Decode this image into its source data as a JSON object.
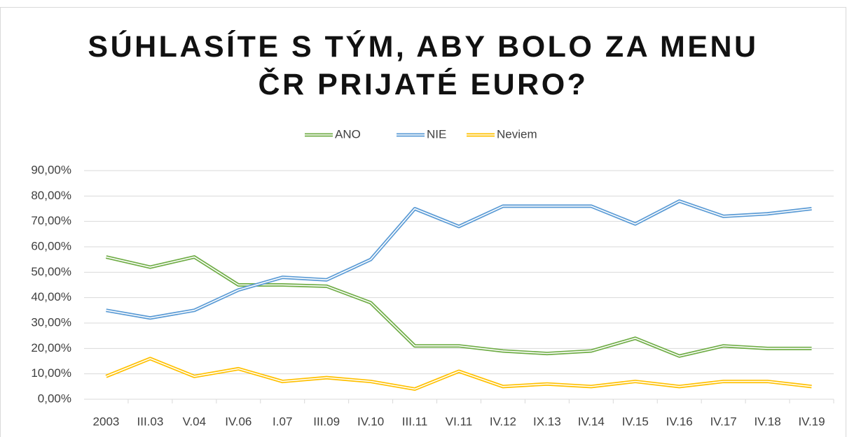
{
  "chart_data": {
    "type": "line",
    "title": "SÚHLASÍTE S TÝM, ABY BOLO ZA MENU ČR PRIJATÉ EURO?",
    "categories": [
      "2003",
      "III.03",
      "V.04",
      "IV.06",
      "I.07",
      "III.09",
      "IV.10",
      "III.11",
      "VI.11",
      "IV.12",
      "IX.13",
      "IV.14",
      "IV.15",
      "IV.16",
      "IV.17",
      "IV.18",
      "IV.19"
    ],
    "series": [
      {
        "name": "ANO",
        "color": "#70ad47",
        "values": [
          56,
          52,
          56,
          45,
          45,
          44.5,
          38,
          21,
          21,
          19,
          18,
          19,
          24,
          17,
          21,
          20,
          20
        ]
      },
      {
        "name": "NIE",
        "color": "#5b9bd5",
        "values": [
          35,
          32,
          35,
          43,
          48,
          47,
          55,
          75,
          68,
          76,
          76,
          76,
          69,
          78,
          72,
          73,
          75
        ]
      },
      {
        "name": "Neviem",
        "color": "#ffc000",
        "values": [
          9,
          16,
          9,
          12,
          7,
          8.5,
          7,
          4,
          11,
          5,
          6,
          5,
          7,
          5,
          7,
          7,
          5
        ]
      }
    ],
    "ylim": [
      0,
      90
    ],
    "yticks": [
      {
        "value": 0,
        "label": "0,00%"
      },
      {
        "value": 10,
        "label": "10,00%"
      },
      {
        "value": 20,
        "label": "20,00%"
      },
      {
        "value": 30,
        "label": "30,00%"
      },
      {
        "value": 40,
        "label": "40,00%"
      },
      {
        "value": 50,
        "label": "50,00%"
      },
      {
        "value": 60,
        "label": "60,00%"
      },
      {
        "value": 70,
        "label": "70,00%"
      },
      {
        "value": 80,
        "label": "80,00%"
      },
      {
        "value": 90,
        "label": "90,00%"
      }
    ],
    "grid": true,
    "legend": "top"
  }
}
